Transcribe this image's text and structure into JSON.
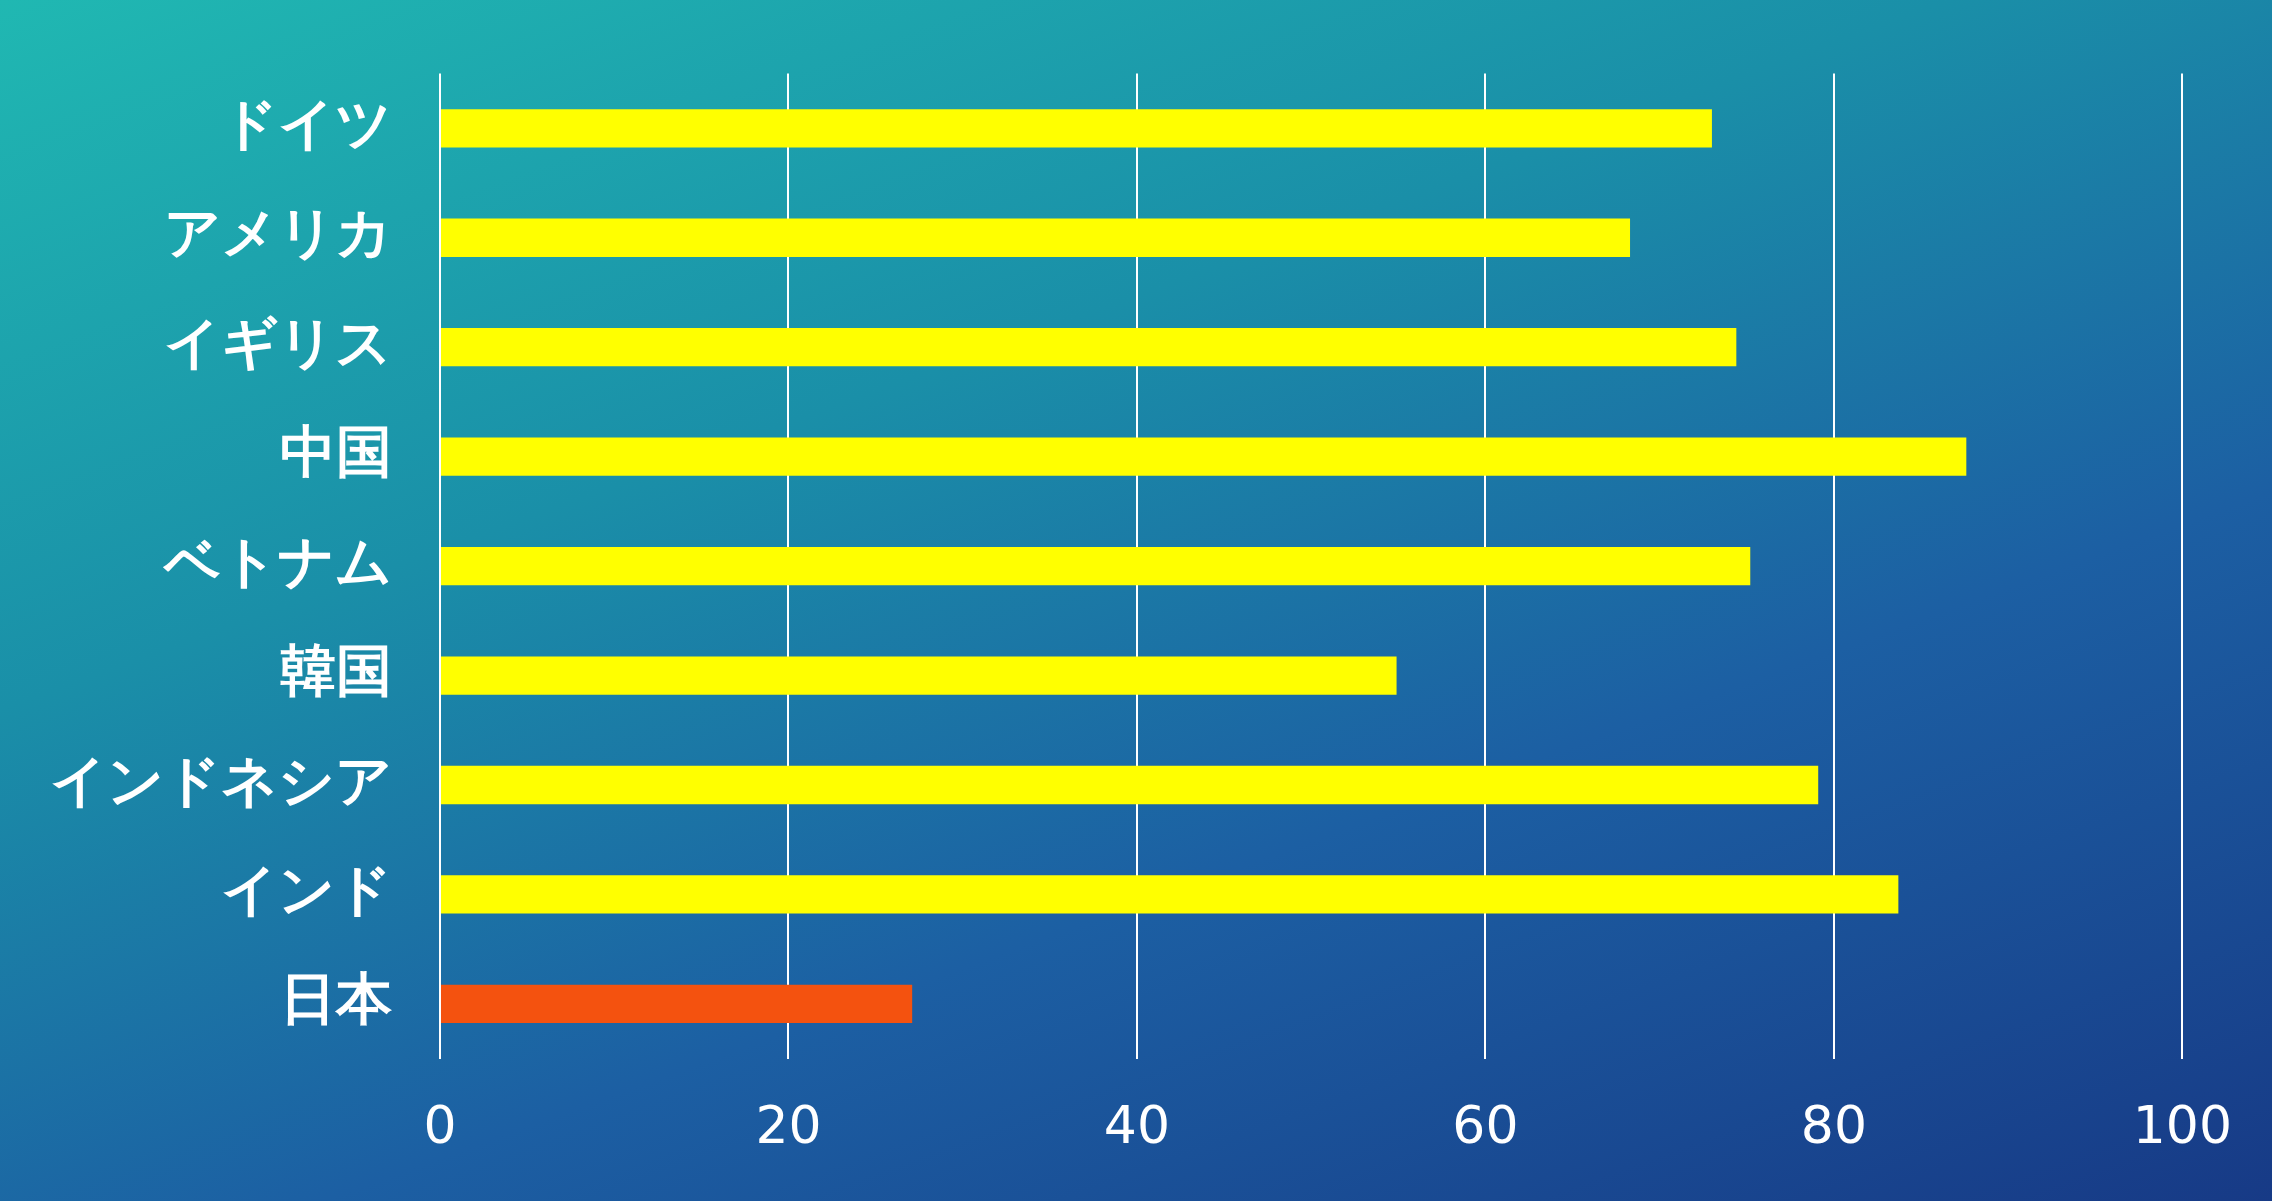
{
  "chart_data": {
    "type": "bar",
    "orientation": "horizontal",
    "categories": [
      "ドイツ",
      "アメリカ",
      "イギリス",
      "中国",
      "ベトナム",
      "韓国",
      "インドネシア",
      "インド",
      "日本"
    ],
    "values": [
      73,
      68.3,
      74.4,
      87.6,
      75.2,
      54.9,
      79.1,
      83.7,
      27.1
    ],
    "colors": [
      "#ffff00",
      "#ffff00",
      "#ffff00",
      "#ffff00",
      "#ffff00",
      "#ffff00",
      "#ffff00",
      "#ffff00",
      "#f4520f"
    ],
    "xlim": [
      0,
      100
    ],
    "xticks": [
      0,
      20,
      40,
      60,
      80,
      100
    ],
    "grid": "x"
  }
}
